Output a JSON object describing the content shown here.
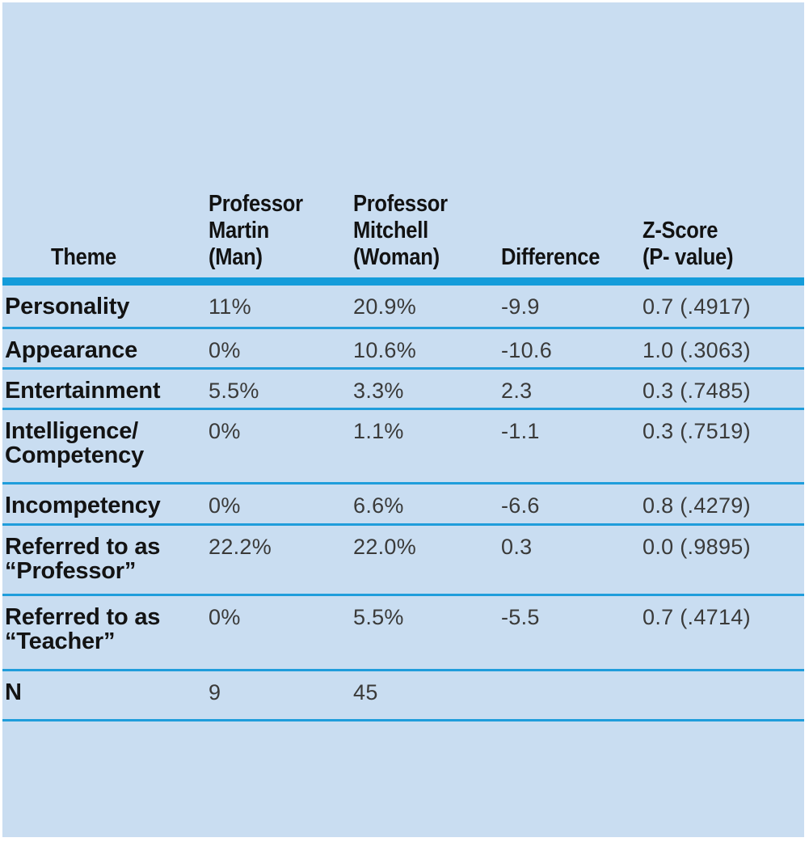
{
  "chart_data": {
    "type": "table",
    "title": "",
    "columns": [
      {
        "key": "theme",
        "label": "Theme"
      },
      {
        "key": "martin",
        "label": "Professor\nMartin\n(Man)"
      },
      {
        "key": "mitchell",
        "label": "Professor\nMitchell\n(Woman)"
      },
      {
        "key": "difference",
        "label": "Difference"
      },
      {
        "key": "zscore",
        "label": "Z-Score\n(P- value)"
      }
    ],
    "rows": [
      {
        "theme": "Personality",
        "martin": "11%",
        "mitchell": "20.9%",
        "difference": "-9.9",
        "zscore": "0.7 (.4917)"
      },
      {
        "theme": "Appearance",
        "martin": "0%",
        "mitchell": "10.6%",
        "difference": "-10.6",
        "zscore": "1.0 (.3063)"
      },
      {
        "theme": "Entertainment",
        "martin": "5.5%",
        "mitchell": "3.3%",
        "difference": "2.3",
        "zscore": "0.3 (.7485)"
      },
      {
        "theme": "Intelligence/\nCompetency",
        "martin": "0%",
        "mitchell": "1.1%",
        "difference": "-1.1",
        "zscore": "0.3 (.7519)"
      },
      {
        "theme": "Incompetency",
        "martin": "0%",
        "mitchell": "6.6%",
        "difference": "-6.6",
        "zscore": "0.8 (.4279)"
      },
      {
        "theme": "Referred to as\n“Professor”",
        "martin": "22.2%",
        "mitchell": "22.0%",
        "difference": "0.3",
        "zscore": "0.0 (.9895)"
      },
      {
        "theme": "Referred to as\n“Teacher”",
        "martin": "0%",
        "mitchell": "5.5%",
        "difference": "-5.5",
        "zscore": "0.7 (.4714)"
      },
      {
        "theme": "N",
        "martin": "9",
        "mitchell": "45",
        "difference": "",
        "zscore": ""
      }
    ],
    "layout": {
      "grid": "horizontal-rules-only",
      "header_rule": "thick",
      "row_rules": "thin"
    }
  },
  "colors": {
    "page_bg": "#ffffff",
    "panel_bg": "#c9ddf1",
    "header_rule": "#149cda",
    "row_rule": "#1f9ddb",
    "label_text": "#131313",
    "value_text": "#3a3a39"
  }
}
